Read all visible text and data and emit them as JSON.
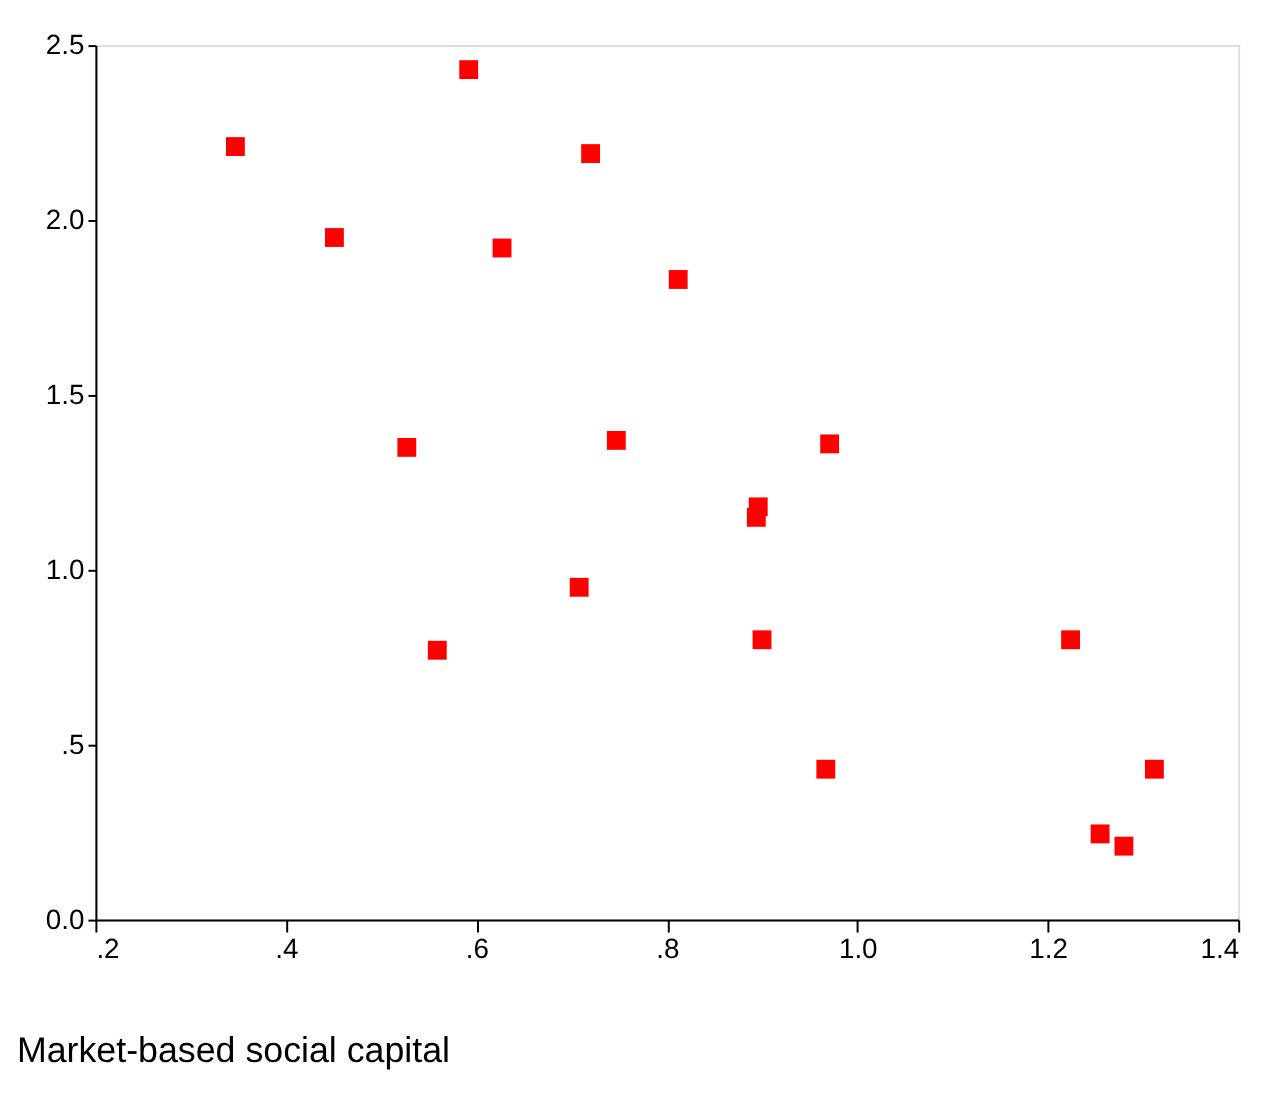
{
  "chart_data": {
    "type": "scatter",
    "xlabel": "Market-based social capital",
    "marker": "square",
    "grid": false,
    "legend": false,
    "x": [
      0.347,
      0.592,
      0.451,
      0.72,
      0.627,
      0.812,
      0.527,
      0.747,
      0.971,
      0.896,
      0.894,
      0.708,
      0.559,
      0.9,
      1.224,
      0.967,
      1.312,
      1.255,
      1.28
    ],
    "series": [
      {
        "color": "#ff0000",
        "values": [
          2.21,
          2.43,
          1.95,
          2.19,
          1.92,
          1.83,
          1.35,
          1.37,
          1.36,
          1.18,
          1.15,
          0.95,
          0.77,
          0.8,
          0.8,
          0.43,
          0.43,
          0.245,
          0.21
        ]
      }
    ],
    "xlim": [
      0.2,
      1.4
    ],
    "xticks": [
      {
        "value": 0.2,
        "label": ".2"
      },
      {
        "value": 0.4,
        "label": ".4"
      },
      {
        "value": 0.6,
        "label": ".6"
      },
      {
        "value": 0.8,
        "label": ".8"
      },
      {
        "value": 1.0,
        "label": "1.0"
      },
      {
        "value": 1.2,
        "label": "1.2"
      },
      {
        "value": 1.4,
        "label": "1.4"
      }
    ],
    "ylim": [
      0,
      2.5
    ],
    "yticks": [
      {
        "value": 0,
        "label": "0.0"
      },
      {
        "value": 0.5,
        "label": ".5"
      },
      {
        "value": 1.0,
        "label": "1.0"
      },
      {
        "value": 1.5,
        "label": "1.5"
      },
      {
        "value": 2.0,
        "label": "2.0"
      },
      {
        "value": 2.5,
        "label": "2.5"
      }
    ]
  }
}
